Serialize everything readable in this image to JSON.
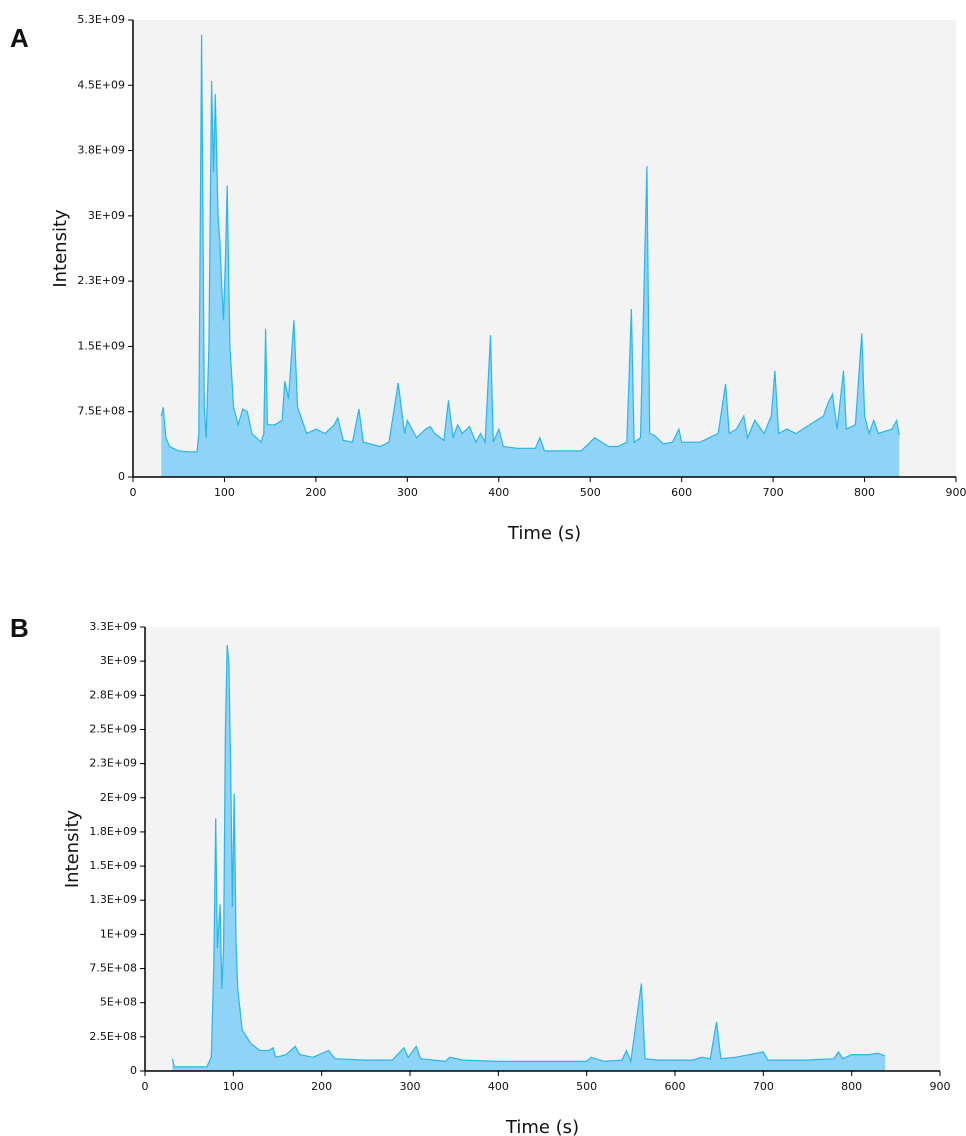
{
  "chart_data": [
    {
      "type": "area",
      "panel_label": "A",
      "x_label": "Time (s)",
      "y_label": "Intensity",
      "color": "#29b6e8",
      "fill": "#8fd3f6",
      "background": "#f3f3f3",
      "xlim": [
        0,
        900
      ],
      "xticks": [
        0,
        100,
        200,
        300,
        400,
        500,
        600,
        700,
        800,
        900
      ],
      "ylim": [
        0,
        5250000000
      ],
      "yticks": [
        0,
        {
          "value": 750000000,
          "label": "7.5E+08"
        },
        {
          "value": 1500000000,
          "label": "1.5E+09"
        },
        {
          "value": 2250000000,
          "label": "2.3E+09"
        },
        {
          "value": 3000000000,
          "label": "3E+09"
        },
        {
          "value": 3750000000,
          "label": "3.8E+09"
        },
        {
          "value": 4500000000,
          "label": "4.5E+09"
        },
        {
          "value": 5250000000,
          "label": "5.3E+09"
        }
      ],
      "x": [
        31,
        33,
        36,
        40,
        50,
        60,
        70,
        72,
        75,
        78,
        80,
        83,
        86,
        88,
        90,
        93,
        95,
        97,
        99,
        101,
        103,
        106,
        110,
        115,
        120,
        125,
        130,
        140,
        143,
        145,
        147,
        155,
        163,
        166,
        170,
        176,
        180,
        190,
        200,
        210,
        220,
        224,
        230,
        240,
        247,
        252,
        260,
        270,
        280,
        290,
        297,
        300,
        310,
        320,
        325,
        330,
        340,
        345,
        350,
        355,
        360,
        368,
        375,
        380,
        385,
        391,
        394,
        400,
        405,
        420,
        440,
        445,
        450,
        470,
        490,
        505,
        520,
        530,
        540,
        545,
        548,
        555,
        562,
        565,
        570,
        580,
        590,
        597,
        600,
        620,
        630,
        640,
        648,
        652,
        660,
        668,
        672,
        680,
        690,
        698,
        702,
        706,
        715,
        725,
        740,
        755,
        760,
        765,
        770,
        777,
        780,
        790,
        797,
        800,
        805,
        810,
        815,
        830,
        835,
        838
      ],
      "values": [
        700000000.0,
        800000000.0,
        450000000.0,
        350000000.0,
        300000000.0,
        290000000.0,
        290000000.0,
        500000000.0,
        5080000000.0,
        800000000.0,
        450000000.0,
        1500000000.0,
        4550000000.0,
        3500000000.0,
        4400000000.0,
        3000000000.0,
        2700000000.0,
        2200000000.0,
        1800000000.0,
        2500000000.0,
        3350000000.0,
        1500000000.0,
        800000000.0,
        600000000.0,
        780000000.0,
        750000000.0,
        500000000.0,
        400000000.0,
        500000000.0,
        1700000000.0,
        600000000.0,
        600000000.0,
        650000000.0,
        1100000000.0,
        900000000.0,
        1800000000.0,
        800000000.0,
        500000000.0,
        550000000.0,
        500000000.0,
        600000000.0,
        680000000.0,
        420000000.0,
        400000000.0,
        780000000.0,
        400000000.0,
        380000000.0,
        350000000.0,
        400000000.0,
        1080000000.0,
        500000000.0,
        650000000.0,
        450000000.0,
        550000000.0,
        580000000.0,
        500000000.0,
        420000000.0,
        880000000.0,
        450000000.0,
        600000000.0,
        500000000.0,
        580000000.0,
        400000000.0,
        500000000.0,
        400000000.0,
        1630000000.0,
        400000000.0,
        550000000.0,
        350000000.0,
        330000000.0,
        330000000.0,
        450000000.0,
        300000000.0,
        300000000.0,
        300000000.0,
        450000000.0,
        350000000.0,
        350000000.0,
        400000000.0,
        1930000000.0,
        400000000.0,
        450000000.0,
        3570000000.0,
        500000000.0,
        480000000.0,
        380000000.0,
        400000000.0,
        550000000.0,
        400000000.0,
        400000000.0,
        450000000.0,
        500000000.0,
        1070000000.0,
        500000000.0,
        550000000.0,
        700000000.0,
        450000000.0,
        650000000.0,
        500000000.0,
        700000000.0,
        1220000000.0,
        500000000.0,
        550000000.0,
        500000000.0,
        600000000.0,
        700000000.0,
        850000000.0,
        950000000.0,
        550000000.0,
        1220000000.0,
        550000000.0,
        600000000.0,
        1650000000.0,
        700000000.0,
        500000000.0,
        650000000.0,
        500000000.0,
        550000000.0,
        650000000.0,
        480000000.0
      ]
    },
    {
      "type": "area",
      "panel_label": "B",
      "x_label": "Time (s)",
      "y_label": "Intensity",
      "color": "#29b6e8",
      "fill": "#8fd3f6",
      "background": "#f3f3f3",
      "xlim": [
        0,
        900
      ],
      "xticks": [
        0,
        100,
        200,
        300,
        400,
        500,
        600,
        700,
        800,
        900
      ],
      "ylim": [
        0,
        3250000000
      ],
      "yticks": [
        0,
        {
          "value": 250000000,
          "label": "2.5E+08"
        },
        {
          "value": 500000000,
          "label": "5E+08"
        },
        {
          "value": 750000000,
          "label": "7.5E+08"
        },
        {
          "value": 1000000000,
          "label": "1E+09"
        },
        {
          "value": 1250000000,
          "label": "1.3E+09"
        },
        {
          "value": 1500000000,
          "label": "1.5E+09"
        },
        {
          "value": 1750000000,
          "label": "1.8E+09"
        },
        {
          "value": 2000000000,
          "label": "2E+09"
        },
        {
          "value": 2250000000,
          "label": "2.3E+09"
        },
        {
          "value": 2500000000,
          "label": "2.5E+09"
        },
        {
          "value": 2750000000,
          "label": "2.8E+09"
        },
        {
          "value": 3000000000,
          "label": "3E+09"
        },
        {
          "value": 3250000000,
          "label": "3.3E+09"
        }
      ],
      "x": [
        31,
        33,
        50,
        70,
        75,
        78,
        80,
        82,
        85,
        87,
        89,
        91,
        93,
        95,
        97,
        99,
        101,
        103,
        105,
        110,
        120,
        130,
        140,
        145,
        148,
        160,
        170,
        175,
        190,
        208,
        215,
        250,
        280,
        293,
        298,
        307,
        312,
        340,
        345,
        360,
        400,
        450,
        500,
        505,
        520,
        540,
        545,
        550,
        562,
        566,
        580,
        620,
        630,
        640,
        647,
        652,
        668,
        700,
        705,
        750,
        780,
        785,
        790,
        800,
        820,
        830,
        838
      ],
      "values": [
        90000000.0,
        30000000.0,
        30000000.0,
        30000000.0,
        100000000.0,
        800000000.0,
        1850000000.0,
        900000000.0,
        1220000000.0,
        600000000.0,
        900000000.0,
        2500000000.0,
        3120000000.0,
        2980000000.0,
        2200000000.0,
        1200000000.0,
        2030000000.0,
        950000000.0,
        600000000.0,
        300000000.0,
        200000000.0,
        150000000.0,
        150000000.0,
        170000000.0,
        100000000.0,
        120000000.0,
        180000000.0,
        120000000.0,
        100000000.0,
        150000000.0,
        90000000.0,
        80000000.0,
        80000000.0,
        170000000.0,
        100000000.0,
        180000000.0,
        90000000.0,
        70000000.0,
        100000000.0,
        80000000.0,
        70000000.0,
        70000000.0,
        70000000.0,
        100000000.0,
        70000000.0,
        80000000.0,
        150000000.0,
        70000000.0,
        640000000.0,
        90000000.0,
        80000000.0,
        80000000.0,
        100000000.0,
        90000000.0,
        360000000.0,
        90000000.0,
        100000000.0,
        140000000.0,
        80000000.0,
        80000000.0,
        90000000.0,
        140000000.0,
        90000000.0,
        120000000.0,
        120000000.0,
        130000000.0,
        110000000.0
      ]
    }
  ]
}
